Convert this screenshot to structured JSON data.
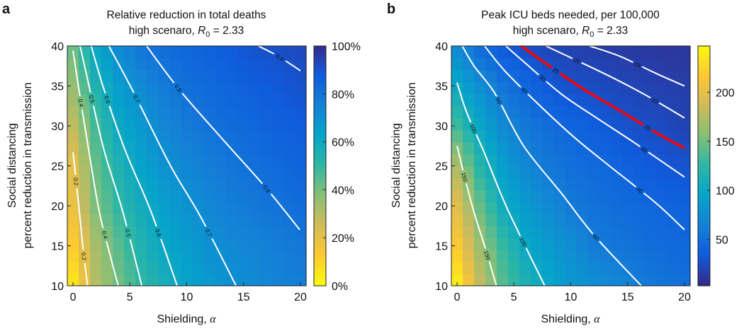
{
  "chart_data": [
    {
      "panel_letter": "a",
      "type": "heatmap",
      "title_line1": "Relative reduction in total deaths",
      "title_line2": {
        "prefix": "high scenaro, ",
        "symbol": "R",
        "subscript": "0",
        "suffix": " = 2.33"
      },
      "xlabel": {
        "text": "Shielding, ",
        "symbol": "α"
      },
      "ylabel_line1": "Social distancing",
      "ylabel_line2": "percent reduction in transmission",
      "xlim": [
        -0.5,
        20.5
      ],
      "ylim": [
        10,
        40
      ],
      "xticks": [
        "0",
        "5",
        "10",
        "15",
        "20"
      ],
      "xtick_values": [
        0,
        5,
        10,
        15,
        20
      ],
      "yticks": [
        "10",
        "15",
        "20",
        "25",
        "30",
        "35",
        "40"
      ],
      "ytick_values": [
        10,
        15,
        20,
        25,
        30,
        35,
        40
      ],
      "colorbar": {
        "range": [
          0,
          1
        ],
        "reversed": true,
        "ticks": [
          "0%",
          "20%",
          "40%",
          "60%",
          "80%",
          "100%"
        ],
        "tick_values": [
          0,
          0.2,
          0.4,
          0.6,
          0.8,
          1.0
        ]
      },
      "grid_x": [
        0,
        2,
        4,
        6,
        8,
        10,
        12,
        14,
        16,
        18,
        20
      ],
      "grid_y": [
        10,
        15,
        20,
        25,
        30,
        35,
        40
      ],
      "values": [
        [
          0.05,
          0.3,
          0.4,
          0.5,
          0.56,
          0.62,
          0.66,
          0.7,
          0.72,
          0.74,
          0.76
        ],
        [
          0.12,
          0.32,
          0.44,
          0.54,
          0.61,
          0.65,
          0.7,
          0.72,
          0.74,
          0.76,
          0.78
        ],
        [
          0.18,
          0.39,
          0.5,
          0.58,
          0.64,
          0.69,
          0.73,
          0.76,
          0.78,
          0.8,
          0.82
        ],
        [
          0.2,
          0.42,
          0.54,
          0.63,
          0.69,
          0.73,
          0.76,
          0.79,
          0.81,
          0.83,
          0.85
        ],
        [
          0.28,
          0.47,
          0.6,
          0.67,
          0.73,
          0.77,
          0.8,
          0.82,
          0.84,
          0.86,
          0.87
        ],
        [
          0.35,
          0.54,
          0.65,
          0.72,
          0.77,
          0.81,
          0.83,
          0.85,
          0.87,
          0.88,
          0.9
        ],
        [
          0.42,
          0.62,
          0.72,
          0.79,
          0.82,
          0.84,
          0.86,
          0.88,
          0.9,
          0.91,
          0.92
        ]
      ],
      "contours": [
        {
          "level": "0.2",
          "color": "#ffffff",
          "x": [
            0,
            0.46,
            0.87,
            1.28
          ],
          "y": [
            26.7,
            20.7,
            14.8,
            10
          ]
        },
        {
          "level": "0.4",
          "color": "#ffffff",
          "x": [
            0,
            0.46,
            1.39,
            2.32,
            3.36,
            3.98
          ],
          "y": [
            39.4,
            35.1,
            26.9,
            19.2,
            13.3,
            10
          ]
        },
        {
          "level": "0.5",
          "color": "#ffffff",
          "x": [
            0.62,
            1.49,
            2.74,
            4.39,
            6.05
          ],
          "y": [
            40,
            34.5,
            26.9,
            19.2,
            10
          ]
        },
        {
          "level": "0.6",
          "color": "#ffffff",
          "x": [
            1.6,
            2.74,
            4.6,
            6.88,
            9.16
          ],
          "y": [
            40,
            34.5,
            26.9,
            19.2,
            10
          ]
        },
        {
          "level": "0.7",
          "color": "#ffffff",
          "x": [
            3.15,
            5.22,
            8.54,
            11.23,
            14.34
          ],
          "y": [
            40,
            34.5,
            25.1,
            18.6,
            10
          ]
        },
        {
          "level": "0.8",
          "color": "#ffffff",
          "x": [
            6.47,
            9.37,
            13.3,
            17.0,
            19.94
          ],
          "y": [
            40,
            34.5,
            28.1,
            22.2,
            17.0
          ]
        },
        {
          "level": "0.9",
          "color": "#ffffff",
          "x": [
            16.3,
            18.07,
            20
          ],
          "y": [
            40,
            38.7,
            36.9
          ]
        }
      ]
    },
    {
      "panel_letter": "b",
      "type": "heatmap",
      "title_line1": "Peak ICU beds needed, per 100,000",
      "title_line2": {
        "prefix": "high scenaro, ",
        "symbol": "R",
        "subscript": "0",
        "suffix": " = 2.33"
      },
      "xlabel": {
        "text": "Shielding, ",
        "symbol": "α"
      },
      "ylabel_line1": "Social distancing",
      "ylabel_line2": "percent reduction in transmission",
      "xlim": [
        -0.5,
        20.5
      ],
      "ylim": [
        10,
        40
      ],
      "xticks": [
        "0",
        "5",
        "10",
        "15",
        "20"
      ],
      "xtick_values": [
        0,
        5,
        10,
        15,
        20
      ],
      "yticks": [
        "10",
        "15",
        "20",
        "25",
        "30",
        "35",
        "40"
      ],
      "ytick_values": [
        10,
        15,
        20,
        25,
        30,
        35,
        40
      ],
      "colorbar": {
        "range": [
          3,
          247
        ],
        "reversed": false,
        "ticks": [
          "50",
          "100",
          "150",
          "200"
        ],
        "tick_values": [
          50,
          100,
          150,
          200
        ]
      },
      "grid_x": [
        0,
        2,
        4,
        6,
        8,
        10,
        12,
        14,
        16,
        18,
        20
      ],
      "grid_y": [
        10,
        15,
        20,
        25,
        30,
        35,
        40
      ],
      "values": [
        [
          240,
          180,
          140,
          115,
          97,
          85,
          77,
          70,
          61,
          55,
          50
        ],
        [
          215,
          165,
          128,
          100,
          87,
          75,
          60,
          55,
          50,
          46,
          43
        ],
        [
          195,
          145,
          105,
          86,
          72,
          58,
          52,
          47,
          44,
          41,
          38
        ],
        [
          170,
          120,
          90,
          70,
          57,
          50,
          45,
          41,
          35,
          31,
          28
        ],
        [
          130,
          98,
          72,
          56,
          48,
          41,
          35,
          29,
          25,
          23,
          19
        ],
        [
          100,
          75,
          54,
          43,
          32,
          26,
          24,
          21,
          19,
          17,
          15
        ],
        [
          70,
          45,
          32,
          24,
          20,
          17,
          15,
          13,
          12,
          11,
          10
        ]
      ],
      "contours": [
        {
          "level": "150",
          "color": "#ffffff",
          "x": [
            0,
            0.56,
            1.49,
            2.53,
            3.46
          ],
          "y": [
            27.5,
            24.2,
            19.2,
            14.5,
            10
          ]
        },
        {
          "level": "100",
          "color": "#ffffff",
          "x": [
            0,
            0.87,
            2.32,
            4.18,
            6.05,
            7.71
          ],
          "y": [
            35.4,
            31.6,
            26.9,
            20.4,
            14.8,
            10
          ]
        },
        {
          "level": "60",
          "color": "#ffffff",
          "x": [
            0.46,
            1.49,
            3.36,
            5.85,
            9.16,
            12.06,
            16.2
          ],
          "y": [
            40,
            37.5,
            34,
            27.5,
            21.6,
            16.3,
            10
          ]
        },
        {
          "level": "40",
          "color": "#ffffff",
          "x": [
            2.42,
            4.19,
            7.09,
            10.2,
            13.3,
            17.45,
            20
          ],
          "y": [
            40,
            36.9,
            32.8,
            28.7,
            25.1,
            20.4,
            17.0
          ]
        },
        {
          "level": "30",
          "color": "#ffffff",
          "x": [
            4.29,
            6.05,
            9.16,
            12.27,
            15.38,
            20
          ],
          "y": [
            40,
            37.8,
            34.0,
            31.0,
            28.1,
            23.6
          ]
        },
        {
          "level": "25",
          "color": "#ff0000",
          "x": [
            5.64,
            8.12,
            11.23,
            14.34,
            17.45,
            20
          ],
          "y": [
            40,
            37.5,
            34.5,
            31.9,
            29.2,
            27.2
          ]
        },
        {
          "level": "20",
          "color": "#ffffff",
          "x": [
            7.81,
            10.2,
            13.3,
            16.4,
            20
          ],
          "y": [
            40,
            38.4,
            36.3,
            34.0,
            31.0
          ]
        },
        {
          "level": "15",
          "color": "#ffffff",
          "x": [
            11.65,
            14.34,
            17.45,
            20
          ],
          "y": [
            40,
            38.7,
            36.6,
            35.0
          ]
        }
      ]
    }
  ]
}
